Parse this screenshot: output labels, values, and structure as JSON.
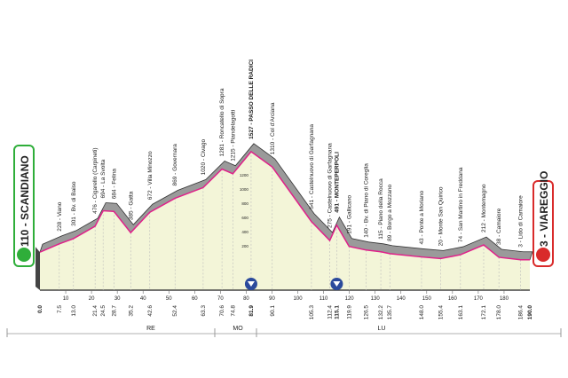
{
  "chart_data": {
    "type": "elevation-profile",
    "start_label": "110 - SCANDIANO",
    "end_label": "3 - VIAREGGIO",
    "x": [
      {
        "value": 0,
        "label": "0.0"
      },
      7.5,
      {
        "value": 13,
        "label": "13.0"
      },
      21.4,
      24.5,
      28.7,
      35.2,
      42.6,
      52.4,
      63.3,
      70.6,
      74.8,
      81.9,
      90.1,
      105.3,
      112.4,
      115.1,
      119.9,
      126.5,
      132.2,
      135.7,
      {
        "value": 148,
        "label": "148.0"
      },
      155.4,
      163.1,
      172.1,
      {
        "value": 178,
        "label": "178.0"
      },
      186.4,
      {
        "value": 190,
        "label": "190.0"
      }
    ],
    "values": [
      110,
      228,
      301,
      476,
      694,
      684,
      385,
      672,
      869,
      1020,
      1281,
      1215,
      1527,
      1310,
      541,
      275,
      491,
      191,
      140,
      115,
      89,
      43,
      20,
      74,
      212,
      38,
      3,
      3
    ],
    "point_labels": [
      null,
      "228 - Viano",
      "301 - Bv. di Baiso",
      "476 - Cigarello (Carpineti)",
      "694 - La Svolta",
      "684 - Felina",
      "385 - Gatta",
      "672 - Villa Minozzo",
      "869 - Governara",
      "1020 - Civago",
      "1281 - Roncatello di Sopra",
      "1215 - Piandelagotti",
      "1527 - PASSO DELLE RADICI",
      "1310 - Col d'Arciana",
      "541 - Castelnuovo di Garfagnana",
      "275 - Castelnuovo di Garfagnana",
      "491 - MONTEPERPOLI",
      "191 - Gallicano",
      "140 - Bv. di Piano di Coreglia",
      "115 - Piano della Rocca",
      "89 - Borgo a Mozzano",
      "43 - Ponte a Moriano",
      "20 - Monte San Quirico",
      "74 - San Martino in Freddana",
      "212 - Montemagno",
      "38 - Camaiore",
      "3 - Lido di Camaiore",
      null
    ],
    "xlim": [
      0,
      190
    ],
    "xticks": [
      10,
      20,
      30,
      40,
      50,
      60,
      70,
      80,
      90,
      100,
      110,
      120,
      130,
      140,
      150,
      160,
      170,
      180
    ],
    "ylim": [
      0,
      1600
    ],
    "yticks": [
      200,
      400,
      600,
      800,
      1000,
      1200
    ],
    "regions": [
      "RE",
      "MO",
      "LU"
    ],
    "color": "#e0218a"
  }
}
